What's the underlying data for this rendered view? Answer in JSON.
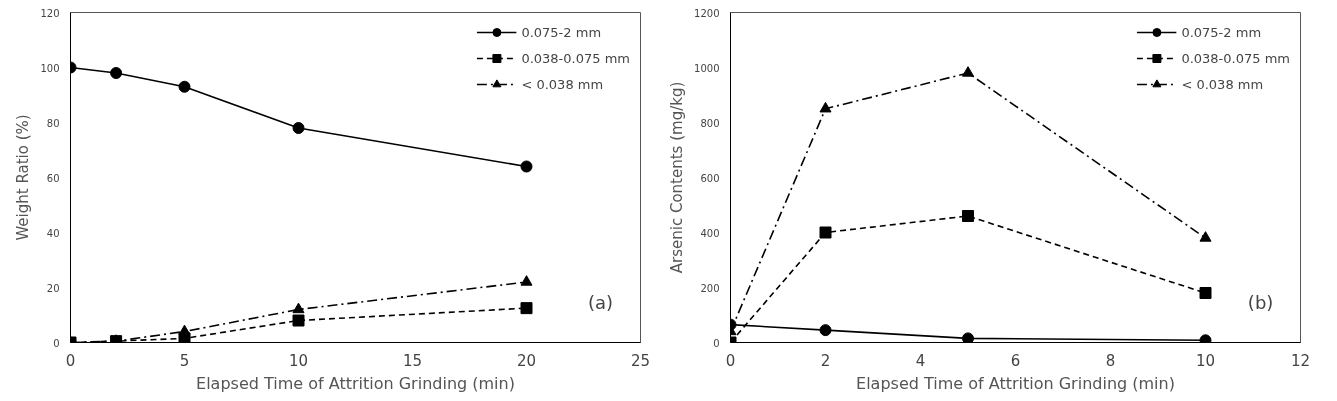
{
  "chart_data": [
    {
      "type": "line",
      "xlabel": "Elapsed Time of Attrition Grinding (min)",
      "ylabel": "Weight Ratio (%)",
      "x": [
        0,
        2,
        5,
        10,
        20
      ],
      "series": [
        {
          "name": "0.075-2 mm",
          "color": "#000000",
          "marker": "circle",
          "line_style": "solid",
          "values": [
            100,
            98,
            93,
            78,
            64
          ]
        },
        {
          "name": "0.038-0.075 mm",
          "color": "#000000",
          "marker": "square",
          "line_style": "dashed",
          "values": [
            0,
            0.5,
            1.5,
            8,
            12.5
          ]
        },
        {
          "name": "< 0.038 mm",
          "color": "#000000",
          "marker": "triangle",
          "line_style": "dashdot",
          "values": [
            0,
            0.5,
            4,
            12,
            22
          ]
        }
      ],
      "xlim": [
        0,
        25
      ],
      "xticks": [
        0,
        5,
        10,
        15,
        20,
        25
      ],
      "ylim": [
        0,
        120
      ],
      "yticks": [
        0,
        20,
        40,
        60,
        80,
        100,
        120
      ],
      "grid": false,
      "legend": "top right",
      "annotations": [
        "(a)"
      ]
    },
    {
      "type": "line",
      "xlabel": "Elapsed Time of Attrition Grinding (min)",
      "ylabel": "Arsenic Contents (mg/kg)",
      "x": [
        0,
        2,
        5,
        10
      ],
      "series": [
        {
          "name": "0.075-2 mm",
          "color": "#000000",
          "marker": "circle",
          "line_style": "solid",
          "values": [
            65,
            45,
            15,
            8
          ]
        },
        {
          "name": "0.038-0.075 mm",
          "color": "#000000",
          "marker": "square",
          "line_style": "dashed",
          "values": [
            0,
            400,
            460,
            180
          ]
        },
        {
          "name": "< 0.038 mm",
          "color": "#000000",
          "marker": "triangle",
          "line_style": "dashdot",
          "values": [
            40,
            850,
            980,
            380
          ]
        }
      ],
      "xlim": [
        0,
        12
      ],
      "xticks": [
        0,
        2,
        4,
        6,
        8,
        10,
        12
      ],
      "ylim": [
        0,
        1200
      ],
      "yticks": [
        0,
        200,
        400,
        600,
        800,
        1000,
        1200
      ],
      "grid": false,
      "legend": "top right",
      "annotations": [
        "(b)"
      ]
    }
  ]
}
